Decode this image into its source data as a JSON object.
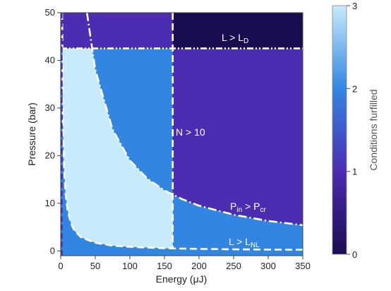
{
  "chart_data": {
    "type": "heatmap",
    "x_axis": {
      "label": "Energy (μJ)",
      "range": [
        0,
        350
      ],
      "ticks": [
        0,
        50,
        100,
        150,
        200,
        250,
        300,
        350
      ]
    },
    "y_axis": {
      "label": "Pressure (bar)",
      "range": [
        -1,
        50
      ],
      "ticks": [
        0,
        10,
        20,
        30,
        40,
        50
      ]
    },
    "colorbar": {
      "label": "Conditions furfilled",
      "range": [
        0,
        3
      ],
      "ticks": [
        0,
        1,
        2,
        3
      ],
      "colors": {
        "0": "#1a0c50",
        "1": "#4c2cb1",
        "2": "#3286e2",
        "3": "#c7ebfa"
      }
    },
    "boundaries": {
      "L_D_pressure": 42.5,
      "N_energy": 162,
      "Pcr_curve": [
        {
          "energy": 38,
          "pressure": 50
        },
        {
          "energy": 50,
          "pressure": 38
        },
        {
          "energy": 75,
          "pressure": 25.5
        },
        {
          "energy": 100,
          "pressure": 19
        },
        {
          "energy": 125,
          "pressure": 15.2
        },
        {
          "energy": 150,
          "pressure": 12.7
        },
        {
          "energy": 175,
          "pressure": 10.9
        },
        {
          "energy": 200,
          "pressure": 9.5
        },
        {
          "energy": 250,
          "pressure": 7.6
        },
        {
          "energy": 300,
          "pressure": 6.3
        },
        {
          "energy": 350,
          "pressure": 5.4
        }
      ],
      "LNL_curve": [
        {
          "energy": 2,
          "pressure": 50
        },
        {
          "energy": 3.5,
          "pressure": 25
        },
        {
          "energy": 5,
          "pressure": 17
        },
        {
          "energy": 7,
          "pressure": 12
        },
        {
          "energy": 10,
          "pressure": 8.5
        },
        {
          "energy": 15,
          "pressure": 5.7
        },
        {
          "energy": 20,
          "pressure": 4.2
        },
        {
          "energy": 30,
          "pressure": 2.8
        },
        {
          "energy": 50,
          "pressure": 1.7
        },
        {
          "energy": 75,
          "pressure": 1.1
        },
        {
          "energy": 100,
          "pressure": 0.85
        },
        {
          "energy": 150,
          "pressure": 0.55
        },
        {
          "energy": 200,
          "pressure": 0.42
        },
        {
          "energy": 250,
          "pressure": 0.34
        },
        {
          "energy": 300,
          "pressure": 0.28
        },
        {
          "energy": 350,
          "pressure": 0.24
        }
      ]
    },
    "annotations": {
      "L_D": {
        "main": "L > L",
        "sub": "D"
      },
      "N": {
        "main": "N > 10"
      },
      "P_cr": {
        "main_1": "P",
        "sub_1": "in",
        "mid": " > P",
        "sub_2": "cr"
      },
      "L_NL": {
        "main": "L > L",
        "sub": "NL"
      }
    }
  }
}
